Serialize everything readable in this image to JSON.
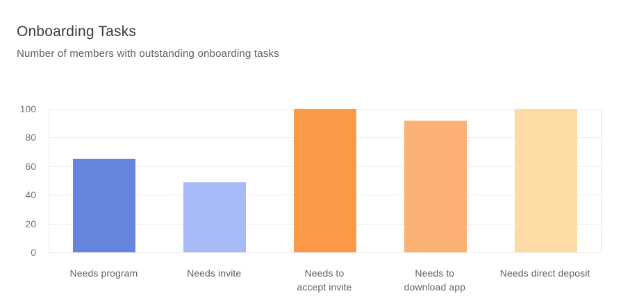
{
  "header": {
    "title": "Onboarding Tasks",
    "subtitle": "Number of members with outstanding onboarding tasks"
  },
  "chart_data": {
    "type": "bar",
    "title": "Onboarding Tasks",
    "subtitle": "Number of members with outstanding onboarding tasks",
    "categories": [
      "Needs program",
      "Needs invite",
      "Needs to accept invite",
      "Needs to download app",
      "Needs direct deposit"
    ],
    "values": [
      65,
      49,
      100,
      92,
      100
    ],
    "bar_colors": [
      "#6584DC",
      "#A7BAF7",
      "#FC9946",
      "#FBB173",
      "#FDDBA4"
    ],
    "x_tick_labels_display": [
      "Needs program",
      "Needs invite",
      "Needs to\naccept invite",
      "Needs to\ndownload app",
      "Needs direct deposit"
    ],
    "xlabel": "",
    "ylabel": "",
    "ylim": [
      0,
      100
    ],
    "yticks": [
      0,
      20,
      40,
      60,
      80,
      100
    ],
    "grid": true,
    "legend_position": "none"
  },
  "colors": {
    "background": "#FFFFFF",
    "grid": "#ECECEC",
    "plot_border": "#E6E6E6",
    "title_text": "#3C3C3C",
    "subtitle_text": "#5E5E5E",
    "tick_text": "#737373",
    "x_label_text": "#616161"
  }
}
